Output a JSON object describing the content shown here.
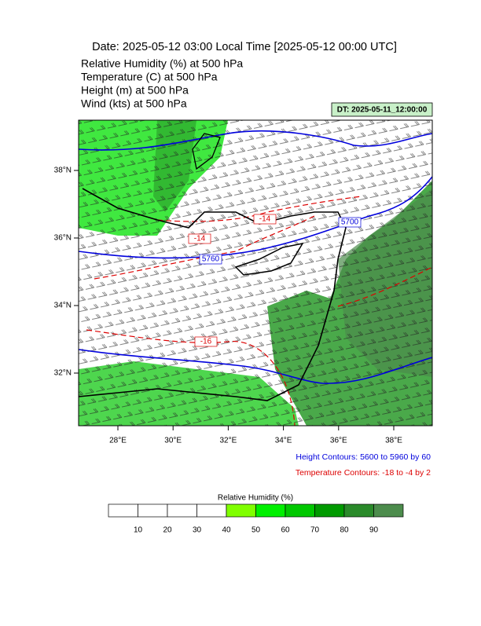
{
  "header": {
    "title": "Date: 2025-05-12  03:00 Local Time [2025-05-12  00:00 UTC]",
    "lines": [
      "Relative Humidity   (%)     at    500 hPa",
      "Temperature   (C)     at    500 hPa",
      "Height   (m)     at    500 hPa",
      "Wind   (kts)     at    500 hPa"
    ],
    "dt_badge": "DT: 2025-05-11_12:00:00"
  },
  "map": {
    "lat_ticks": [
      {
        "value": 38,
        "label": "38°N"
      },
      {
        "value": 36,
        "label": "36°N"
      },
      {
        "value": 34,
        "label": "34°N"
      },
      {
        "value": 32,
        "label": "32°N"
      }
    ],
    "lon_ticks": [
      {
        "value": 28,
        "label": "28°E"
      },
      {
        "value": 30,
        "label": "30°E"
      },
      {
        "value": 32,
        "label": "32°E"
      },
      {
        "value": 34,
        "label": "34°E"
      },
      {
        "value": 36,
        "label": "36°E"
      },
      {
        "value": 38,
        "label": "38°E"
      }
    ],
    "contour_labels": [
      "5700",
      "5760",
      "-14",
      "-14",
      "-16"
    ]
  },
  "notes": {
    "height": "Height Contours: 5600 to 5960 by 60",
    "temperature": "Temperature Contours: -18 to -4 by 2"
  },
  "colorbar": {
    "title": "Relative Humidity  (%)",
    "ticks": [
      10,
      20,
      30,
      40,
      50,
      60,
      70,
      80,
      90
    ],
    "colors": [
      "#ffffff",
      "#ffffff",
      "#ffffff",
      "#ffffff",
      "#80ff00",
      "#00f000",
      "#00c800",
      "#009a00",
      "#2a8a2a",
      "#4c8c4c"
    ]
  }
}
